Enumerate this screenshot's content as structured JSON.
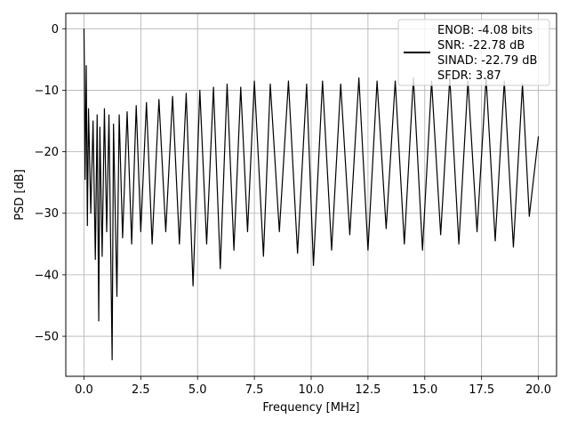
{
  "chart_data": {
    "type": "line",
    "title": "",
    "xlabel": "Frequency [MHz]",
    "ylabel": "PSD [dB]",
    "xlim": [
      -0.8,
      20.8
    ],
    "ylim": [
      -56.5,
      2.5
    ],
    "xticks": [
      0.0,
      2.5,
      5.0,
      7.5,
      10.0,
      12.5,
      15.0,
      17.5,
      20.0
    ],
    "xtick_labels": [
      "0.0",
      "2.5",
      "5.0",
      "7.5",
      "10.0",
      "12.5",
      "15.0",
      "17.5",
      "20.0"
    ],
    "yticks": [
      0,
      -10,
      -20,
      -30,
      -40,
      -50
    ],
    "ytick_labels": [
      "0",
      "−10",
      "−20",
      "−30",
      "−40",
      "−50"
    ],
    "grid": true,
    "legend_position": "top-right",
    "line_color": "#000000",
    "series": [
      {
        "name": "",
        "x": [
          0.0,
          0.02,
          0.05,
          0.1,
          0.15,
          0.2,
          0.3,
          0.4,
          0.5,
          0.58,
          0.65,
          0.7,
          0.8,
          0.9,
          1.0,
          1.1,
          1.24,
          1.3,
          1.45,
          1.55,
          1.7,
          1.9,
          2.1,
          2.3,
          2.5,
          2.75,
          3.0,
          3.3,
          3.6,
          3.9,
          4.2,
          4.5,
          4.8,
          5.1,
          5.4,
          5.7,
          6.0,
          6.3,
          6.6,
          6.9,
          7.2,
          7.5,
          7.9,
          8.2,
          8.6,
          9.0,
          9.4,
          9.8,
          10.1,
          10.5,
          10.9,
          11.3,
          11.7,
          12.1,
          12.5,
          12.9,
          13.3,
          13.7,
          14.1,
          14.5,
          14.9,
          15.3,
          15.7,
          16.1,
          16.5,
          16.9,
          17.3,
          17.7,
          18.1,
          18.5,
          18.9,
          19.3,
          19.6,
          20.0
        ],
        "y": [
          0.0,
          -7.0,
          -24.5,
          -6.0,
          -32.0,
          -13.0,
          -30.0,
          -15.0,
          -37.5,
          -14.0,
          -47.5,
          -16.0,
          -37.0,
          -13.0,
          -33.0,
          -14.0,
          -53.8,
          -15.5,
          -43.5,
          -14.0,
          -34.0,
          -13.5,
          -35.0,
          -12.5,
          -33.0,
          -12.0,
          -35.0,
          -11.5,
          -33.0,
          -11.0,
          -35.0,
          -10.5,
          -41.8,
          -10.0,
          -35.0,
          -9.5,
          -39.0,
          -9.0,
          -36.0,
          -9.5,
          -33.0,
          -8.5,
          -37.0,
          -9.0,
          -33.0,
          -8.5,
          -36.5,
          -9.0,
          -38.5,
          -8.5,
          -36.0,
          -9.0,
          -33.5,
          -8.0,
          -36.0,
          -8.5,
          -32.5,
          -8.5,
          -35.0,
          -8.0,
          -36.0,
          -8.5,
          -33.5,
          -8.0,
          -35.0,
          -8.5,
          -33.0,
          -8.0,
          -34.5,
          -8.5,
          -35.5,
          -9.0,
          -30.5,
          -17.5
        ]
      }
    ],
    "legend": {
      "lines": [
        "ENOB: -4.08 bits",
        "SNR: -22.78 dB",
        "SINAD: -22.79 dB",
        "SFDR: 3.87"
      ]
    }
  }
}
